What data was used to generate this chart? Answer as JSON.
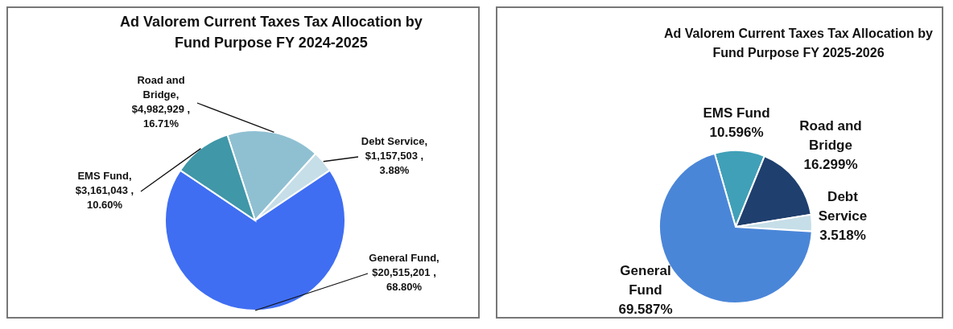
{
  "chart_data": [
    {
      "type": "pie",
      "title": "Ad Valorem Current Taxes Tax Allocation by Fund Purpose FY 2024-2025",
      "categories": [
        "Road and Bridge",
        "Debt Service",
        "General Fund",
        "EMS Fund"
      ],
      "values": [
        4982929,
        1157503,
        20515201,
        3161043
      ],
      "colors": [
        "#8fc0d2",
        "#c6dee8",
        "#3f6ef2",
        "#3f97a8"
      ],
      "value_labels": [
        ", $4,982,929 , 16.71%",
        ", $1,157,503 , 3.88%",
        ", $20,515,201 , 68.80%",
        ", $3,161,043 , 10.60%"
      ],
      "legend": false
    },
    {
      "type": "pie",
      "title": "Ad Valorem Current Taxes Tax Allocation by Fund Purpose FY 2025-2026",
      "categories": [
        "EMS Fund",
        "Road and Bridge",
        "Debt Service",
        "General Fund"
      ],
      "values": [
        10.596,
        16.299,
        3.518,
        69.587
      ],
      "colors": [
        "#40a0b8",
        "#1f3f6e",
        "#c6dee8",
        "#4a86d8"
      ],
      "value_labels": [
        "10.596%",
        "16.299%",
        "3.518%",
        "69.587%"
      ],
      "legend": false
    }
  ]
}
